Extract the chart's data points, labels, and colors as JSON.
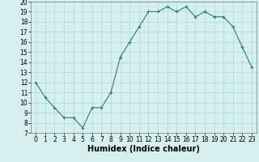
{
  "x": [
    0,
    1,
    2,
    3,
    4,
    5,
    6,
    7,
    8,
    9,
    10,
    11,
    12,
    13,
    14,
    15,
    16,
    17,
    18,
    19,
    20,
    21,
    22,
    23
  ],
  "y": [
    12,
    10.5,
    9.5,
    8.5,
    8.5,
    7.5,
    9.5,
    9.5,
    11,
    14.5,
    16,
    17.5,
    19,
    19,
    19.5,
    19,
    19.5,
    18.5,
    19,
    18.5,
    18.5,
    17.5,
    15.5,
    13.5
  ],
  "xlabel": "Humidex (Indice chaleur)",
  "ylim": [
    7,
    20
  ],
  "xlim": [
    -0.5,
    23.5
  ],
  "yticks": [
    7,
    8,
    9,
    10,
    11,
    12,
    13,
    14,
    15,
    16,
    17,
    18,
    19,
    20
  ],
  "xticks": [
    0,
    1,
    2,
    3,
    4,
    5,
    6,
    7,
    8,
    9,
    10,
    11,
    12,
    13,
    14,
    15,
    16,
    17,
    18,
    19,
    20,
    21,
    22,
    23
  ],
  "line_color": "#2d7d6e",
  "marker": "+",
  "bg_color": "#d6f0ee",
  "grid_color": "#aad8d4",
  "xlabel_fontsize": 7,
  "tick_fontsize": 5.5
}
